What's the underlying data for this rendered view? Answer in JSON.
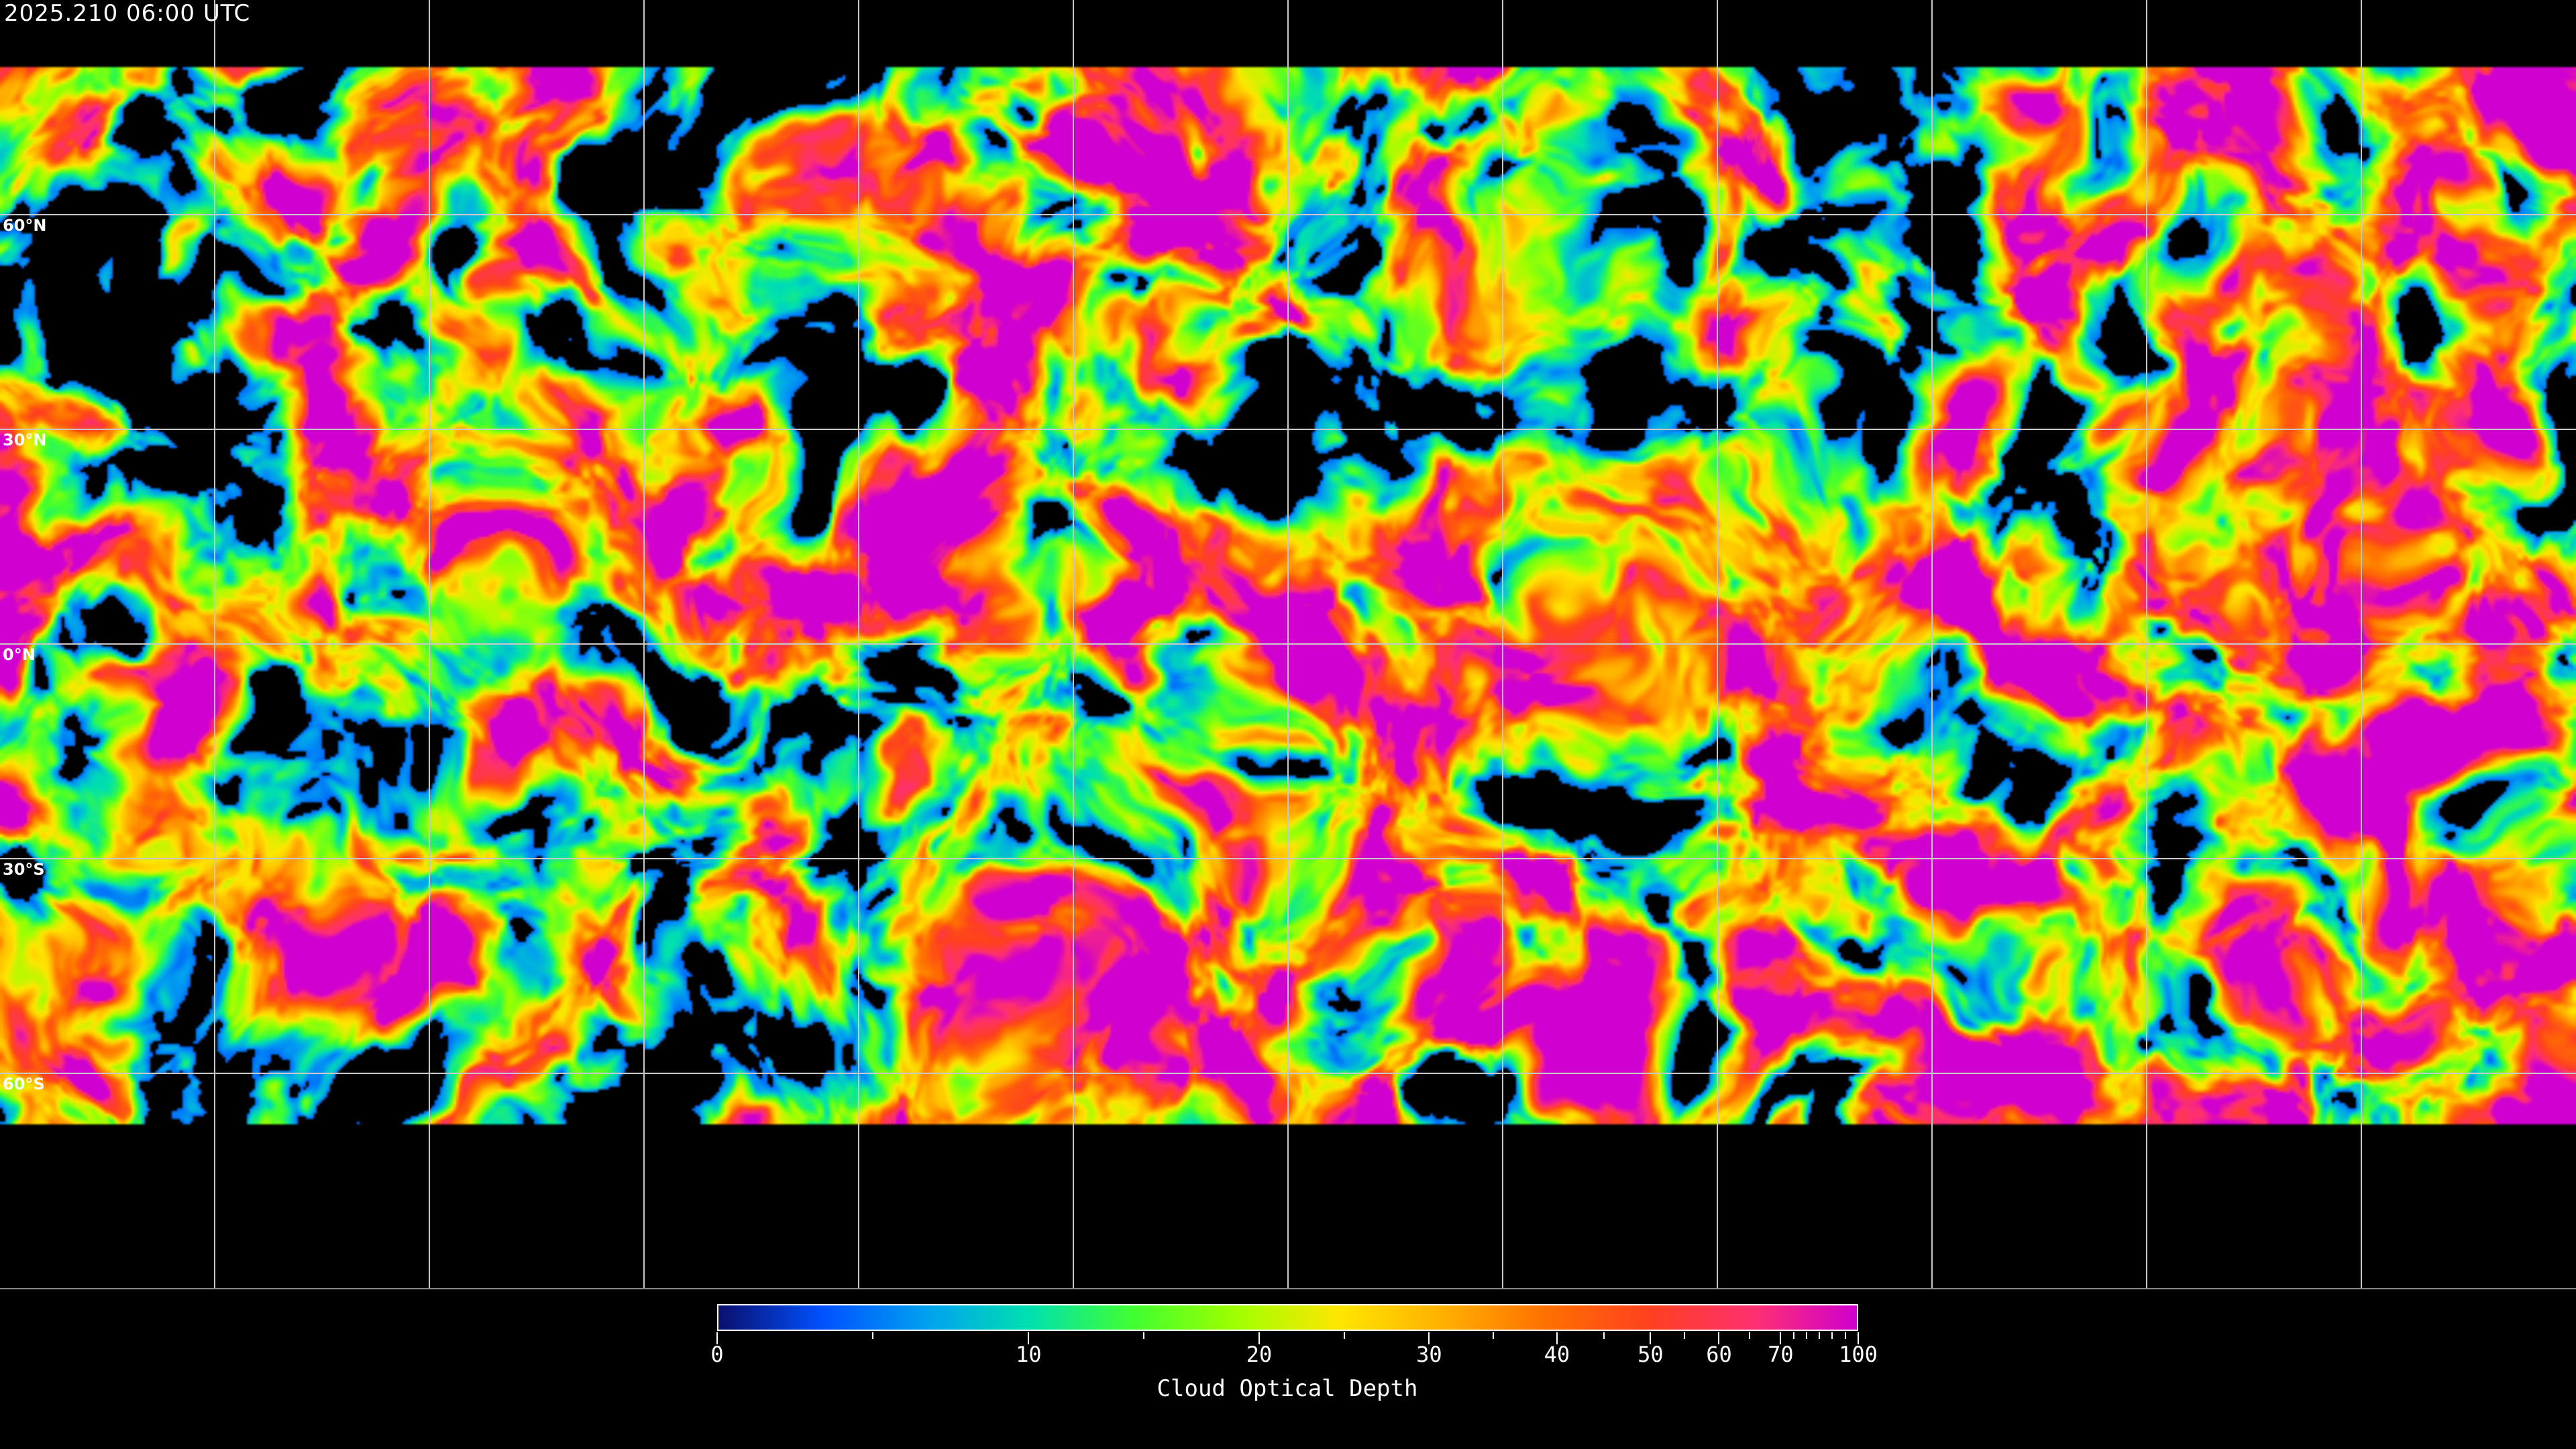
{
  "header": {
    "timestamp": "2025.210 06:00 UTC"
  },
  "map": {
    "projection": "equirectangular",
    "gridlines": true,
    "grid_spacing_deg": 30,
    "lat_labels": [
      "60°N",
      "30°N",
      "0°N",
      "30°S",
      "60°S"
    ],
    "coastline_color": "#ffffff",
    "no_data_color": "#000000"
  },
  "colorbar": {
    "title": "Cloud Optical Depth",
    "range": [
      0,
      100
    ],
    "tick_labels": [
      "0",
      "10",
      "20",
      "30",
      "40",
      "50",
      "60",
      "70",
      "100"
    ],
    "colors": [
      "#0a0f6e",
      "#0050ff",
      "#00a0f0",
      "#00e0b0",
      "#40ff30",
      "#a0ff00",
      "#ffe600",
      "#ffb000",
      "#ff7000",
      "#ff4020",
      "#ff3070",
      "#d000d0"
    ]
  }
}
